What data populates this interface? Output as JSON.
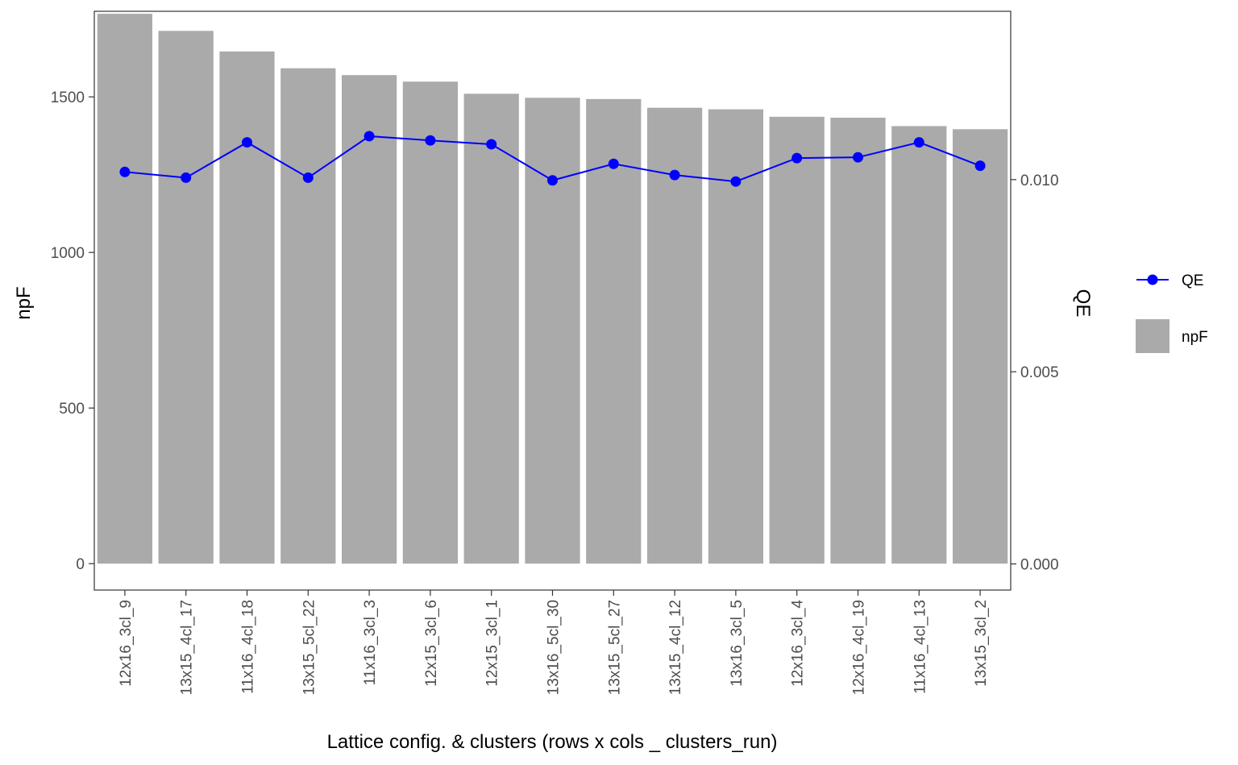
{
  "chart_data": {
    "type": "bar",
    "categories": [
      "12x16_3cl_9",
      "13x15_4cl_17",
      "11x16_4cl_18",
      "13x15_5cl_22",
      "11x16_3cl_3",
      "12x15_3cl_6",
      "12x15_3cl_1",
      "13x16_5cl_30",
      "13x15_5cl_27",
      "13x15_4cl_12",
      "13x16_3cl_5",
      "12x16_3cl_4",
      "12x16_4cl_19",
      "11x16_4cl_13",
      "13x15_3cl_2"
    ],
    "series": [
      {
        "name": "npF",
        "type": "bar",
        "axis": "left",
        "color": "#aaaaaa",
        "values": [
          1767,
          1712,
          1646,
          1592,
          1570,
          1549,
          1510,
          1497,
          1493,
          1465,
          1460,
          1436,
          1433,
          1406,
          1396
        ]
      },
      {
        "name": "QE",
        "type": "line",
        "axis": "right",
        "color": "#0000ff",
        "values": [
          0.0102,
          0.01005,
          0.01097,
          0.01005,
          0.01113,
          0.01102,
          0.01092,
          0.00998,
          0.01041,
          0.01012,
          0.00995,
          0.01056,
          0.01058,
          0.01097,
          0.01036
        ]
      }
    ],
    "xlabel": "Lattice config. & clusters (rows x cols _ clusters_run)",
    "ylabel": "npF",
    "y2label": "QE",
    "ylim": [
      -85,
      1775
    ],
    "y2lim": [
      -0.00068,
      0.01438
    ],
    "yticks": [
      0,
      500,
      1000,
      1500
    ],
    "yticklabels": [
      "0",
      "500",
      "1000",
      "1500"
    ],
    "y2ticks": [
      0,
      0.005,
      0.01
    ],
    "y2ticklabels": [
      "0.000",
      "0.005",
      "0.010"
    ],
    "grid": false,
    "legend": {
      "position": "right",
      "entries": [
        "QE",
        "npF"
      ]
    }
  }
}
